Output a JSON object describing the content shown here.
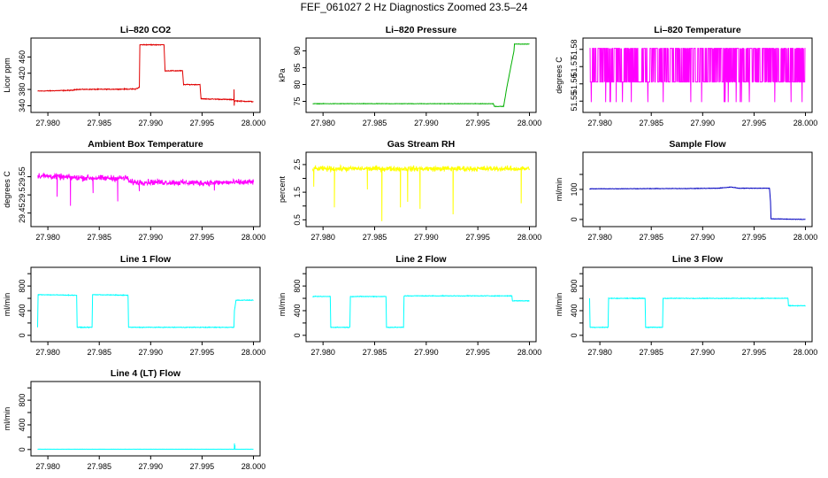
{
  "page": {
    "title": "FEF_061027  2 Hz Diagnostics Zoomed 23.5–24"
  },
  "colors": {
    "co2": "#e00000",
    "pressure": "#00b000",
    "temperature": "#ff00ff",
    "ambient": "#ff00ff",
    "rh": "#ffff00",
    "sample_flow": "#0000c0",
    "line_flow": "#00ffff"
  },
  "chart_data": [
    {
      "type": "line",
      "title": "Li–820 CO2",
      "ylabel": "Licor ppm",
      "xlabel": "",
      "color": "#e00000",
      "xlim": [
        27.9787,
        28.0003
      ],
      "xticks": [
        "27.980",
        "27.985",
        "27.990",
        "27.995",
        "28.000"
      ],
      "xtick_values": [
        27.98,
        27.985,
        27.99,
        27.995,
        28.0
      ],
      "ylim": [
        330,
        500
      ],
      "yticks": [
        340,
        380,
        420,
        460
      ],
      "noise": 1.5,
      "x": [
        27.979,
        27.9825,
        27.9826,
        27.9885,
        27.9889,
        27.98895,
        27.9913,
        27.9914,
        27.9931,
        27.9932,
        27.9948,
        27.9949,
        27.9981,
        27.99811,
        27.99813,
        27.99815,
        28.0
      ],
      "y": [
        376,
        378,
        380,
        381,
        385,
        490,
        490,
        426,
        426,
        392,
        392,
        357,
        355,
        380,
        340,
        352,
        350
      ],
      "spikes": []
    },
    {
      "type": "line",
      "title": "Li–820 Pressure",
      "ylabel": "kPa",
      "xlabel": "",
      "color": "#00b000",
      "xlim": [
        27.9787,
        28.0003
      ],
      "xticks": [
        "27.980",
        "27.985",
        "27.990",
        "27.995",
        "28.000"
      ],
      "xtick_values": [
        27.98,
        27.985,
        27.99,
        27.995,
        28.0
      ],
      "ylim": [
        72.5,
        93
      ],
      "yticks": [
        75,
        80,
        85,
        90
      ],
      "noise": 0.1,
      "x": [
        27.979,
        27.9965,
        27.9966,
        27.9975,
        27.9978,
        27.9985,
        27.99855,
        28.0
      ],
      "y": [
        74.3,
        74.3,
        73.5,
        73.5,
        79,
        90,
        92,
        92
      ],
      "spikes": []
    },
    {
      "type": "line",
      "title": "Li–820 Temperature",
      "ylabel": "degrees C",
      "xlabel": "",
      "color": "#ff00ff",
      "xlim": [
        27.9787,
        28.0003
      ],
      "xticks": [
        "27.980",
        "27.985",
        "27.990",
        "27.995",
        "28.000"
      ],
      "xtick_values": [
        27.98,
        27.985,
        27.99,
        27.995,
        28.0
      ],
      "ylim": [
        51.545,
        51.585
      ],
      "yticks": [
        51.55,
        51.56,
        51.57,
        51.58
      ],
      "toggle": true,
      "high": 51.5806,
      "low": 51.5611,
      "floor": 51.5494,
      "x": [],
      "y": [],
      "spikes": []
    },
    {
      "type": "line",
      "title": "Ambient Box Temperature",
      "ylabel": "degrees C",
      "xlabel": "",
      "color": "#ff00ff",
      "xlim": [
        27.9787,
        28.0003
      ],
      "xticks": [
        "27.980",
        "27.985",
        "27.990",
        "27.995",
        "28.000"
      ],
      "xtick_values": [
        27.98,
        27.985,
        27.99,
        27.995,
        28.0
      ],
      "ylim": [
        29.42,
        29.61
      ],
      "yticks": [
        29.45,
        29.5,
        29.55
      ],
      "noise": 0.012,
      "x": [
        27.979,
        27.982,
        27.985,
        27.9878,
        27.9879,
        27.99,
        27.995,
        28.0
      ],
      "y": [
        29.553,
        29.548,
        29.546,
        29.546,
        29.535,
        29.535,
        29.533,
        29.535
      ],
      "spikes": [
        [
          27.9822,
          29.47
        ],
        [
          27.9868,
          29.482
        ],
        [
          27.9809,
          29.495
        ],
        [
          27.9844,
          29.505
        ],
        [
          27.9889,
          29.51
        ],
        [
          27.9962,
          29.512
        ]
      ]
    },
    {
      "type": "line",
      "title": "Gas Stream RH",
      "ylabel": "percent",
      "xlabel": "",
      "color": "#ffff00",
      "xlim": [
        27.9787,
        28.0003
      ],
      "xticks": [
        "27.980",
        "27.985",
        "27.990",
        "27.995",
        "28.000"
      ],
      "xtick_values": [
        27.98,
        27.985,
        27.99,
        27.995,
        28.0
      ],
      "ylim": [
        0.35,
        2.85
      ],
      "yticks": [
        0.5,
        1.5,
        2.5
      ],
      "ytick_labels": [
        "0.5",
        "1.5",
        "2.5"
      ],
      "extra_yticks": [
        1.0,
        2.0
      ],
      "noise": 0.14,
      "x": [
        27.979,
        28.0
      ],
      "y": [
        2.35,
        2.35
      ],
      "spikes": [
        [
          27.9811,
          0.95
        ],
        [
          27.9857,
          0.45
        ],
        [
          27.9875,
          0.95
        ],
        [
          27.9882,
          1.15
        ],
        [
          27.9894,
          0.9
        ],
        [
          27.9926,
          0.7
        ],
        [
          27.9992,
          1.1
        ],
        [
          27.9843,
          1.6
        ],
        [
          27.9791,
          1.7
        ]
      ]
    },
    {
      "type": "line",
      "title": "Sample Flow",
      "ylabel": "ml/min",
      "xlabel": "",
      "color": "#0000c0",
      "xlim": [
        27.9787,
        28.0003
      ],
      "xticks": [
        "27.980",
        "27.985",
        "27.990",
        "27.995",
        "28.000"
      ],
      "xtick_values": [
        27.98,
        27.985,
        27.99,
        27.995,
        28.0
      ],
      "ylim": [
        -15,
        215
      ],
      "yticks": [
        0,
        50,
        100,
        150
      ],
      "ytick_labels": [
        "0",
        "",
        "100",
        ""
      ],
      "noise": 1.2,
      "x": [
        27.979,
        27.9885,
        27.9915,
        27.9928,
        27.9935,
        27.9965,
        27.9966,
        27.99665,
        27.9968,
        28.0
      ],
      "y": [
        102,
        103,
        104,
        108,
        104,
        104,
        60,
        2,
        2,
        0
      ],
      "spikes": []
    },
    {
      "type": "line",
      "title": "Line 1 Flow",
      "ylabel": "ml/min",
      "xlabel": "",
      "color": "#00ffff",
      "xlim": [
        27.9787,
        28.0003
      ],
      "xticks": [
        "27.980",
        "27.985",
        "27.990",
        "27.995",
        "28.000"
      ],
      "xtick_values": [
        27.98,
        27.985,
        27.99,
        27.995,
        28.0
      ],
      "ylim": [
        -60,
        1060
      ],
      "yticks": [
        0,
        200,
        400,
        600,
        800,
        1000
      ],
      "ytick_labels": [
        "0",
        "",
        "400",
        "",
        "800",
        ""
      ],
      "noise": 8,
      "x": [
        27.979,
        27.97905,
        27.9828,
        27.98285,
        27.9843,
        27.98435,
        27.9878,
        27.98785,
        27.9981,
        27.99815,
        27.9983,
        28.0
      ],
      "y": [
        130,
        660,
        650,
        130,
        130,
        660,
        650,
        130,
        130,
        400,
        570,
        570
      ],
      "spikes": []
    },
    {
      "type": "line",
      "title": "Line 2 Flow",
      "ylabel": "ml/min",
      "xlabel": "",
      "color": "#00ffff",
      "xlim": [
        27.9787,
        28.0003
      ],
      "xticks": [
        "27.980",
        "27.985",
        "27.990",
        "27.995",
        "28.000"
      ],
      "xtick_values": [
        27.98,
        27.985,
        27.99,
        27.995,
        28.0
      ],
      "ylim": [
        -60,
        1060
      ],
      "yticks": [
        0,
        200,
        400,
        600,
        800,
        1000
      ],
      "ytick_labels": [
        "0",
        "",
        "400",
        "",
        "800",
        ""
      ],
      "noise": 8,
      "x": [
        27.979,
        27.9807,
        27.98075,
        27.9826,
        27.98265,
        27.9861,
        27.98615,
        27.9878,
        27.98785,
        27.9983,
        27.99835,
        28.0
      ],
      "y": [
        630,
        630,
        130,
        130,
        630,
        630,
        130,
        130,
        640,
        640,
        560,
        560
      ],
      "spikes": []
    },
    {
      "type": "line",
      "title": "Line 3 Flow",
      "ylabel": "ml/min",
      "xlabel": "",
      "color": "#00ffff",
      "xlim": [
        27.9787,
        28.0003
      ],
      "xticks": [
        "27.980",
        "27.985",
        "27.990",
        "27.995",
        "28.000"
      ],
      "xtick_values": [
        27.98,
        27.985,
        27.99,
        27.995,
        28.0
      ],
      "ylim": [
        -60,
        1060
      ],
      "yticks": [
        0,
        200,
        400,
        600,
        800,
        1000
      ],
      "ytick_labels": [
        "0",
        "",
        "400",
        "",
        "800",
        ""
      ],
      "noise": 8,
      "x": [
        27.979,
        27.97905,
        27.9808,
        27.98085,
        27.9844,
        27.98445,
        27.9861,
        27.98615,
        27.9983,
        27.99835,
        28.0
      ],
      "y": [
        600,
        130,
        130,
        600,
        600,
        130,
        130,
        600,
        600,
        480,
        480
      ],
      "spikes": []
    },
    {
      "type": "line",
      "title": "Line 4 (LT) Flow",
      "ylabel": "ml/min",
      "xlabel": "",
      "color": "#00ffff",
      "xlim": [
        27.9787,
        28.0003
      ],
      "xticks": [
        "27.980",
        "27.985",
        "27.990",
        "27.995",
        "28.000"
      ],
      "xtick_values": [
        27.98,
        27.985,
        27.99,
        27.995,
        28.0
      ],
      "ylim": [
        -60,
        1060
      ],
      "yticks": [
        0,
        200,
        400,
        600,
        800,
        1000
      ],
      "ytick_labels": [
        "0",
        "",
        "400",
        "",
        "800",
        ""
      ],
      "noise": 2,
      "x": [
        27.979,
        28.0
      ],
      "y": [
        5,
        5
      ],
      "spikes": [
        [
          27.99815,
          100
        ],
        [
          27.9982,
          70
        ]
      ]
    }
  ]
}
